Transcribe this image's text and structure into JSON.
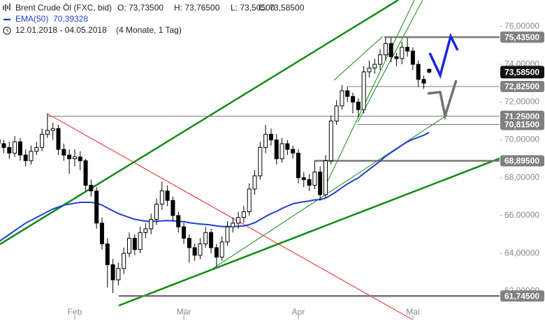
{
  "chart_data": {
    "type": "candlestick",
    "title": "Brent Crude Öl (FXC, bid)",
    "ohlc_labels": [
      {
        "value": 73.735,
        "label": "O: 73,73500"
      },
      {
        "value": 73.765,
        "label": "H: 73,76500"
      },
      {
        "value": 73.505,
        "label": "L: 73,50500"
      },
      {
        "value": 73.585,
        "label": "C: 73,58500"
      }
    ],
    "period": "12.01.2018 - 04.05.2018",
    "period_note": "(4 Monate, 1 Tag)",
    "candles": {
      "up_color": "#ffffff",
      "down_color": "#000000",
      "open": [
        70.0,
        69.8,
        69.6,
        69.3,
        69.9,
        69.2,
        68.9,
        69.4,
        69.6,
        70.3,
        70.5,
        70.6,
        69.5,
        69.2,
        69.0,
        69.1,
        68.9,
        67.6,
        67.3,
        65.6,
        64.5,
        63.4,
        62.6,
        63.2,
        64.0,
        64.8,
        64.2,
        65.1,
        65.3,
        65.8,
        66.6,
        67.3,
        66.8,
        66.0,
        65.4,
        64.8,
        64.3,
        63.9,
        64.5,
        65.1,
        64.3,
        63.8,
        64.6,
        65.4,
        65.6,
        65.9,
        66.2,
        67.4,
        68.1,
        69.6,
        70.3,
        70.0,
        69.0,
        69.8,
        69.5,
        69.3,
        68.0,
        67.9,
        67.6,
        68.3,
        67.1,
        68.9,
        71.0,
        71.8,
        72.6,
        72.3,
        72.0,
        71.6,
        73.6,
        73.8,
        74.0,
        74.5,
        75.1,
        74.4,
        74.3,
        74.9,
        74.7,
        74.0,
        73.2,
        73.735
      ],
      "high": [
        70.3,
        70.0,
        69.9,
        70.2,
        70.1,
        69.5,
        69.7,
        69.9,
        70.6,
        71.4,
        70.9,
        70.8,
        69.8,
        69.5,
        69.5,
        69.4,
        69.0,
        67.9,
        67.5,
        65.9,
        64.8,
        63.7,
        63.5,
        64.3,
        65.1,
        65.0,
        65.4,
        65.6,
        66.1,
        66.9,
        67.8,
        67.6,
        67.0,
        66.2,
        65.6,
        65.0,
        64.5,
        64.8,
        65.4,
        65.3,
        64.5,
        64.9,
        65.7,
        65.9,
        66.2,
        66.5,
        67.7,
        68.4,
        69.9,
        70.8,
        70.6,
        70.3,
        70.1,
        70.0,
        69.7,
        69.5,
        68.3,
        68.2,
        68.9,
        68.6,
        69.2,
        71.3,
        72.1,
        72.9,
        72.8,
        72.5,
        72.2,
        73.9,
        74.2,
        74.3,
        74.8,
        75.4,
        75.4,
        74.6,
        75.2,
        75.4,
        74.9,
        74.2,
        73.4,
        73.765
      ],
      "low": [
        69.5,
        69.3,
        69.0,
        69.1,
        68.9,
        68.6,
        68.7,
        69.2,
        69.4,
        70.1,
        70.0,
        69.2,
        68.9,
        68.2,
        68.6,
        68.4,
        67.3,
        67.0,
        65.3,
        64.2,
        62.2,
        61.9,
        62.3,
        62.9,
        63.8,
        63.9,
        64.0,
        64.8,
        65.0,
        65.5,
        66.3,
        66.5,
        65.7,
        65.1,
        64.5,
        63.5,
        63.6,
        63.7,
        64.3,
        64.0,
        63.3,
        63.6,
        64.4,
        65.1,
        65.3,
        65.6,
        66.0,
        67.1,
        67.9,
        69.3,
        69.7,
        68.7,
        68.8,
        69.2,
        69.0,
        67.7,
        67.5,
        67.3,
        67.4,
        66.8,
        66.9,
        68.7,
        70.8,
        71.6,
        72.0,
        71.4,
        71.2,
        71.4,
        73.3,
        73.5,
        73.7,
        74.2,
        74.1,
        73.9,
        74.0,
        74.4,
        73.7,
        72.8,
        72.7,
        73.505
      ],
      "close": [
        69.8,
        69.6,
        69.3,
        69.9,
        69.2,
        68.9,
        69.4,
        69.6,
        70.3,
        70.5,
        70.6,
        69.5,
        69.2,
        69.0,
        69.1,
        68.9,
        67.6,
        67.3,
        65.6,
        64.5,
        63.4,
        62.6,
        63.2,
        64.0,
        64.8,
        64.2,
        65.1,
        65.3,
        65.8,
        66.6,
        67.3,
        66.8,
        66.0,
        65.4,
        64.8,
        64.3,
        63.9,
        64.5,
        65.1,
        64.3,
        63.8,
        64.6,
        65.4,
        65.6,
        65.9,
        66.2,
        67.4,
        68.1,
        69.6,
        70.3,
        70.0,
        69.0,
        69.8,
        69.5,
        69.3,
        68.0,
        67.9,
        67.6,
        68.3,
        67.1,
        68.9,
        71.0,
        71.8,
        72.6,
        72.3,
        72.0,
        71.6,
        73.6,
        73.8,
        74.0,
        74.5,
        75.1,
        74.4,
        74.3,
        74.9,
        74.7,
        74.0,
        73.2,
        73.0,
        73.585
      ]
    },
    "ema": {
      "name": "EMA(50)",
      "color": "#1f3fcf",
      "last": {
        "value": 70.39328,
        "label": "70,39328"
      },
      "values": [
        64.6,
        64.8,
        65.0,
        65.2,
        65.4,
        65.6,
        65.75,
        65.9,
        66.05,
        66.2,
        66.35,
        66.45,
        66.55,
        66.6,
        66.65,
        66.7,
        66.7,
        66.7,
        66.65,
        66.55,
        66.4,
        66.25,
        66.1,
        66.0,
        65.9,
        65.8,
        65.75,
        65.7,
        65.7,
        65.7,
        65.72,
        65.73,
        65.72,
        65.7,
        65.67,
        65.62,
        65.58,
        65.55,
        65.53,
        65.5,
        65.45,
        65.42,
        65.42,
        65.42,
        65.43,
        65.45,
        65.52,
        65.62,
        65.78,
        65.95,
        66.1,
        66.22,
        66.37,
        66.5,
        66.62,
        66.68,
        66.73,
        66.77,
        66.83,
        66.84,
        66.92,
        67.08,
        67.27,
        67.48,
        67.67,
        67.84,
        67.99,
        68.22,
        68.44,
        68.66,
        68.89,
        69.13,
        69.33,
        69.52,
        69.72,
        69.9,
        70.03,
        70.14,
        70.25,
        70.39328
      ]
    },
    "levels": [
      {
        "value": 75.435,
        "label": "75,43500"
      },
      {
        "value": 72.825,
        "label": "72,82500"
      },
      {
        "value": 71.25,
        "label": "71,25000"
      },
      {
        "value": 70.815,
        "label": "70,81500"
      },
      {
        "value": 68.895,
        "label": "68,89500"
      },
      {
        "value": 61.745,
        "label": "61,74500"
      }
    ],
    "current": {
      "value": 73.585,
      "label": "73,58500"
    },
    "xlim": [
      0.3,
      91.9
    ],
    "xticks": [
      {
        "value": 14,
        "label": "Feb"
      },
      {
        "value": 34,
        "label": "Mär"
      },
      {
        "value": 55,
        "label": "Apr"
      },
      {
        "value": 76,
        "label": "Mai"
      }
    ],
    "ylim": [
      60.5,
      77.4
    ],
    "yticks": [
      {
        "value": 62,
        "label": "62,00000"
      },
      {
        "value": 64,
        "label": "64,00000"
      },
      {
        "value": 66,
        "label": "66,00000"
      },
      {
        "value": 68,
        "label": "68,00000"
      },
      {
        "value": 70,
        "label": "70,00000"
      },
      {
        "value": 72,
        "label": "72,00000"
      },
      {
        "value": 74,
        "label": "74,00000"
      },
      {
        "value": 76,
        "label": "76,00000"
      }
    ]
  }
}
